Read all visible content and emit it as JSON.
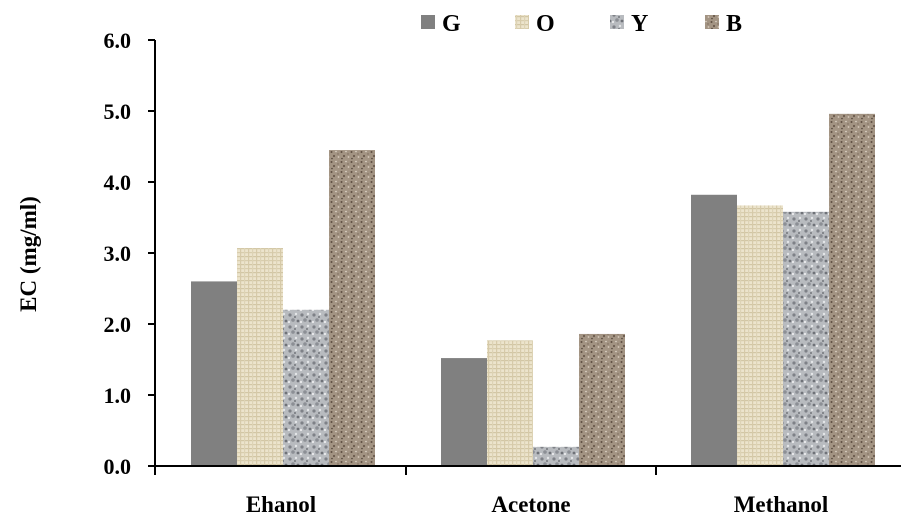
{
  "chart_data": {
    "type": "bar",
    "categories": [
      "Ehanol",
      "Acetone",
      "Methanol"
    ],
    "series": [
      {
        "name": "G",
        "values": [
          2.6,
          1.52,
          3.82
        ],
        "color": "#808080",
        "pattern": "solid"
      },
      {
        "name": "O",
        "values": [
          3.07,
          1.77,
          3.67
        ],
        "color": "#e8dfc6",
        "pattern": "weave"
      },
      {
        "name": "Y",
        "values": [
          2.2,
          0.27,
          3.58
        ],
        "color": "#a9abaf",
        "pattern": "granite"
      },
      {
        "name": "B",
        "values": [
          4.45,
          1.86,
          4.96
        ],
        "color": "#9a8b7c",
        "pattern": "speckle"
      }
    ],
    "title": "",
    "xlabel": "",
    "ylabel": "EC (mg/ml)",
    "ylim": [
      0,
      6
    ],
    "y_ticks": [
      "0.0",
      "1.0",
      "2.0",
      "3.0",
      "4.0",
      "5.0",
      "6.0"
    ],
    "grid": false,
    "legend_position": "top"
  }
}
